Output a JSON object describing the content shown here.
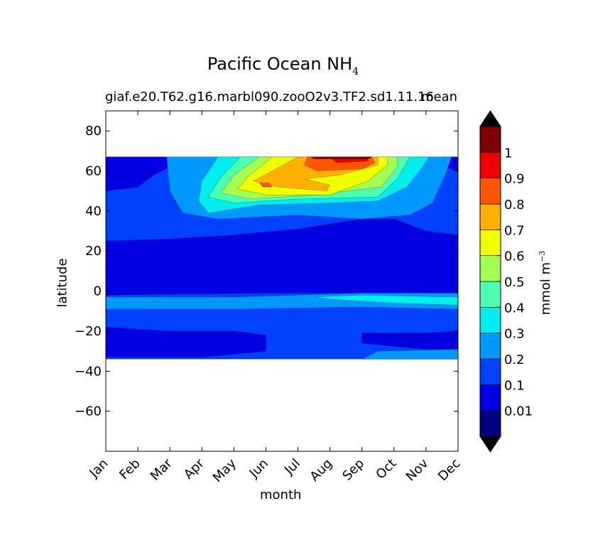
{
  "chart_data": {
    "type": "contour",
    "suptitle": "Pacific Ocean NH",
    "suptitle_subscript": "4",
    "title_left": "giaf.e20.T62.g16.marbl090.zooO2v3.TF2.sd1.11.16",
    "title_right": "mean",
    "xlabel": "month",
    "ylabel": "latitude",
    "x_categories": [
      "Jan",
      "Feb",
      "Mar",
      "Apr",
      "May",
      "Jun",
      "Jul",
      "Aug",
      "Sep",
      "Oct",
      "Nov",
      "Dec"
    ],
    "ylim": [
      -80,
      90
    ],
    "y_ticks": [
      80,
      60,
      40,
      20,
      0,
      -20,
      -40,
      -60
    ],
    "y_tick_labels": [
      "80",
      "60",
      "40",
      "20",
      "0",
      "−20",
      "−40",
      "−60"
    ],
    "data_lat_range": [
      -34,
      67
    ],
    "colorbar": {
      "label": "mmol m",
      "label_sup": "−3",
      "levels": [
        0.01,
        0.1,
        0.2,
        0.3,
        0.4,
        0.5,
        0.6,
        0.7,
        0.8,
        0.9,
        1
      ],
      "tick_labels": [
        "0.01",
        "0.1",
        "0.2",
        "0.3",
        "0.4",
        "0.5",
        "0.6",
        "0.7",
        "0.8",
        "0.9",
        "1"
      ],
      "colors": [
        "#00007f",
        "#0000e0",
        "#0040ff",
        "#0099ff",
        "#00eeee",
        "#4dffb0",
        "#a4ff53",
        "#f0ff00",
        "#ffb000",
        "#ff5500",
        "#ee0000",
        "#7f0000"
      ],
      "extend": "both",
      "under_color": "#000000",
      "over_color": "#000000"
    },
    "fields": [
      {
        "level": "0.1–0.2",
        "description": "background band (-34 to 67 latitude)"
      },
      {
        "level": "0.01–0.1",
        "description": "tropical band and subtropical minima"
      },
      {
        "level": "0.2–1",
        "description": "northern summer maximum near 50–67 N"
      }
    ]
  }
}
